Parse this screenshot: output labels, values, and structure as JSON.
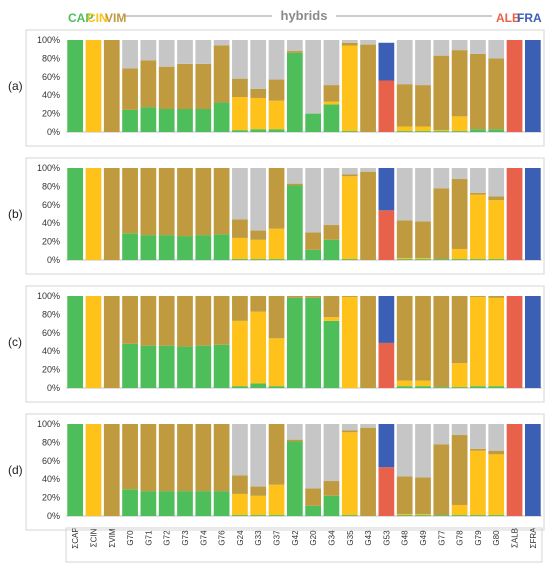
{
  "colors": {
    "CAP": "#4dbe5a",
    "CIN": "#ffc21a",
    "VIM": "#bf9a3f",
    "other": "#c6c6c6",
    "ALB": "#e8614a",
    "FRA": "#3a5fb4",
    "hybrids": "#8a8a8a"
  },
  "header": {
    "CAP": "CAP",
    "CIN": "CIN",
    "VIM": "VIM",
    "hybrids": "hybrids",
    "ALB": "ALB",
    "FRA": "FRA"
  },
  "categories": [
    "ΣCAP",
    "ΣCIN",
    "ΣVIM",
    "G70",
    "G71",
    "G72",
    "G73",
    "G74",
    "G76",
    "G24",
    "G33",
    "G37",
    "G42",
    "G20",
    "G34",
    "G35",
    "G43",
    "G53",
    "G48",
    "G49",
    "G77",
    "G78",
    "G79",
    "G80",
    "ΣALB",
    "ΣFRA"
  ],
  "yticks": [
    "0%",
    "20%",
    "40%",
    "60%",
    "80%",
    "100%"
  ],
  "chart_data": [
    {
      "type": "bar",
      "panel": "(a)",
      "stacked": true,
      "percent": true,
      "ylim": [
        0,
        100
      ],
      "series": [
        {
          "name": "CAP",
          "values": [
            100,
            0,
            0,
            24,
            27,
            25,
            25,
            25,
            32,
            2,
            3,
            3,
            86,
            20,
            30,
            1,
            0,
            0,
            1,
            1,
            1,
            1,
            3,
            3,
            0,
            0
          ]
        },
        {
          "name": "CIN",
          "values": [
            0,
            100,
            0,
            0,
            0,
            0,
            0,
            0,
            0,
            36,
            34,
            31,
            0,
            0,
            3,
            93,
            0,
            0,
            5,
            5,
            1,
            16,
            0,
            0,
            0,
            0
          ]
        },
        {
          "name": "VIM",
          "values": [
            0,
            0,
            100,
            45,
            51,
            46,
            49,
            49,
            62,
            20,
            10,
            23,
            2,
            0,
            18,
            3,
            95,
            0,
            46,
            45,
            81,
            72,
            82,
            77,
            0,
            0
          ]
        },
        {
          "name": "",
          "values": [
            0,
            0,
            0,
            31,
            22,
            29,
            26,
            26,
            6,
            42,
            53,
            43,
            12,
            80,
            49,
            3,
            5,
            0,
            48,
            49,
            17,
            11,
            15,
            20,
            0,
            0
          ]
        },
        {
          "name": "ALB",
          "values": [
            0,
            0,
            0,
            0,
            0,
            0,
            0,
            0,
            0,
            0,
            0,
            0,
            0,
            0,
            0,
            0,
            0,
            56,
            0,
            0,
            0,
            0,
            0,
            0,
            100,
            0
          ]
        },
        {
          "name": "FRA",
          "values": [
            0,
            0,
            0,
            0,
            0,
            0,
            0,
            0,
            0,
            0,
            0,
            0,
            0,
            0,
            0,
            0,
            0,
            41,
            0,
            0,
            0,
            0,
            0,
            0,
            0,
            100
          ]
        }
      ]
    },
    {
      "type": "bar",
      "panel": "(b)",
      "stacked": true,
      "percent": true,
      "ylim": [
        0,
        100
      ],
      "series": [
        {
          "name": "CAP",
          "values": [
            100,
            0,
            0,
            29,
            27,
            27,
            26,
            27,
            28,
            1,
            1,
            1,
            81,
            11,
            22,
            1,
            0,
            0,
            1,
            1,
            1,
            1,
            1,
            1,
            0,
            0
          ]
        },
        {
          "name": "CIN",
          "values": [
            0,
            100,
            0,
            0,
            0,
            0,
            0,
            0,
            0,
            23,
            21,
            33,
            0,
            0,
            0,
            90,
            0,
            0,
            1,
            1,
            0,
            11,
            70,
            64,
            0,
            0
          ]
        },
        {
          "name": "VIM",
          "values": [
            0,
            0,
            100,
            71,
            73,
            73,
            74,
            73,
            72,
            20,
            10,
            66,
            2,
            19,
            16,
            2,
            96,
            0,
            41,
            40,
            77,
            76,
            2,
            4,
            0,
            0
          ]
        },
        {
          "name": "",
          "values": [
            0,
            0,
            0,
            0,
            0,
            0,
            0,
            0,
            0,
            56,
            68,
            0,
            17,
            70,
            62,
            7,
            4,
            0,
            57,
            58,
            22,
            12,
            27,
            31,
            0,
            0
          ]
        },
        {
          "name": "ALB",
          "values": [
            0,
            0,
            0,
            0,
            0,
            0,
            0,
            0,
            0,
            0,
            0,
            0,
            0,
            0,
            0,
            0,
            0,
            54,
            0,
            0,
            0,
            0,
            0,
            0,
            100,
            0
          ]
        },
        {
          "name": "FRA",
          "values": [
            0,
            0,
            0,
            0,
            0,
            0,
            0,
            0,
            0,
            0,
            0,
            0,
            0,
            0,
            0,
            0,
            0,
            46,
            0,
            0,
            0,
            0,
            0,
            0,
            0,
            100
          ]
        }
      ]
    },
    {
      "type": "bar",
      "panel": "(c)",
      "stacked": true,
      "percent": true,
      "ylim": [
        0,
        100
      ],
      "series": [
        {
          "name": "CAP",
          "values": [
            100,
            0,
            0,
            48,
            46,
            46,
            45,
            46,
            47,
            2,
            5,
            2,
            98,
            98,
            73,
            0,
            0,
            0,
            2,
            2,
            1,
            1,
            2,
            2,
            0,
            0
          ]
        },
        {
          "name": "CIN",
          "values": [
            0,
            100,
            0,
            0,
            0,
            0,
            0,
            0,
            0,
            71,
            78,
            52,
            0,
            0,
            4,
            99,
            0,
            0,
            6,
            6,
            0,
            26,
            97,
            96,
            0,
            0
          ]
        },
        {
          "name": "VIM",
          "values": [
            0,
            0,
            100,
            52,
            54,
            54,
            55,
            54,
            53,
            27,
            17,
            46,
            2,
            2,
            23,
            1,
            100,
            0,
            92,
            92,
            99,
            73,
            1,
            2,
            0,
            0
          ]
        },
        {
          "name": "",
          "values": [
            0,
            0,
            0,
            0,
            0,
            0,
            0,
            0,
            0,
            0,
            0,
            0,
            0,
            0,
            0,
            0,
            0,
            0,
            0,
            0,
            0,
            0,
            0,
            0,
            0,
            0
          ]
        },
        {
          "name": "ALB",
          "values": [
            0,
            0,
            0,
            0,
            0,
            0,
            0,
            0,
            0,
            0,
            0,
            0,
            0,
            0,
            0,
            0,
            0,
            49,
            0,
            0,
            0,
            0,
            0,
            0,
            100,
            0
          ]
        },
        {
          "name": "FRA",
          "values": [
            0,
            0,
            0,
            0,
            0,
            0,
            0,
            0,
            0,
            0,
            0,
            0,
            0,
            0,
            0,
            0,
            0,
            51,
            0,
            0,
            0,
            0,
            0,
            0,
            0,
            100
          ]
        }
      ]
    },
    {
      "type": "bar",
      "panel": "(d)",
      "stacked": true,
      "percent": true,
      "ylim": [
        0,
        100
      ],
      "series": [
        {
          "name": "CAP",
          "values": [
            100,
            0,
            0,
            29,
            27,
            27,
            27,
            27,
            27,
            1,
            1,
            1,
            81,
            11,
            22,
            1,
            0,
            0,
            1,
            1,
            1,
            1,
            1,
            1,
            0,
            0
          ]
        },
        {
          "name": "CIN",
          "values": [
            0,
            100,
            0,
            0,
            0,
            0,
            0,
            0,
            0,
            23,
            21,
            33,
            0,
            0,
            0,
            90,
            0,
            0,
            1,
            1,
            0,
            11,
            70,
            66,
            0,
            0
          ]
        },
        {
          "name": "VIM",
          "values": [
            0,
            0,
            100,
            71,
            73,
            73,
            73,
            73,
            73,
            20,
            10,
            66,
            2,
            19,
            16,
            2,
            96,
            0,
            41,
            40,
            77,
            76,
            2,
            4,
            0,
            0
          ]
        },
        {
          "name": "",
          "values": [
            0,
            0,
            0,
            0,
            0,
            0,
            0,
            0,
            0,
            56,
            68,
            0,
            17,
            70,
            62,
            7,
            4,
            0,
            57,
            58,
            22,
            12,
            27,
            29,
            0,
            0
          ]
        },
        {
          "name": "ALB",
          "values": [
            0,
            0,
            0,
            0,
            0,
            0,
            0,
            0,
            0,
            0,
            0,
            0,
            0,
            0,
            0,
            0,
            0,
            53,
            0,
            0,
            0,
            0,
            0,
            0,
            100,
            0
          ]
        },
        {
          "name": "FRA",
          "values": [
            0,
            0,
            0,
            0,
            0,
            0,
            0,
            0,
            0,
            0,
            0,
            0,
            0,
            0,
            0,
            0,
            0,
            47,
            0,
            0,
            0,
            0,
            0,
            0,
            0,
            100
          ]
        }
      ]
    }
  ]
}
